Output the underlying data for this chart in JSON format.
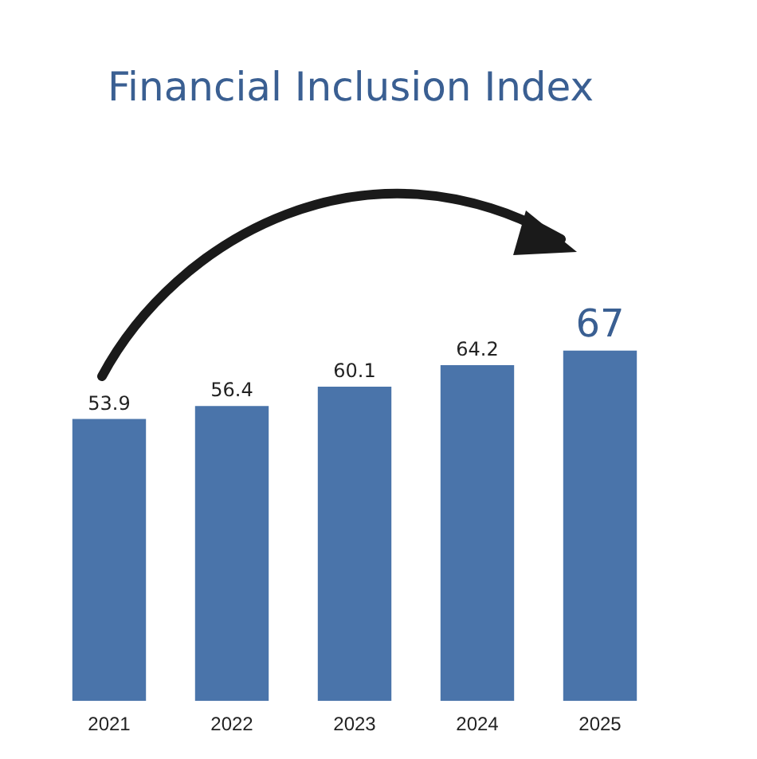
{
  "chart_data": {
    "type": "bar",
    "title": "Financial Inclusion Index",
    "categories": [
      "2021",
      "2022",
      "2023",
      "2024",
      "2025"
    ],
    "values": [
      53.9,
      56.4,
      60.1,
      64.2,
      67
    ],
    "color": "#4a74aa",
    "data_labels": true,
    "grid": false,
    "legend": false
  }
}
